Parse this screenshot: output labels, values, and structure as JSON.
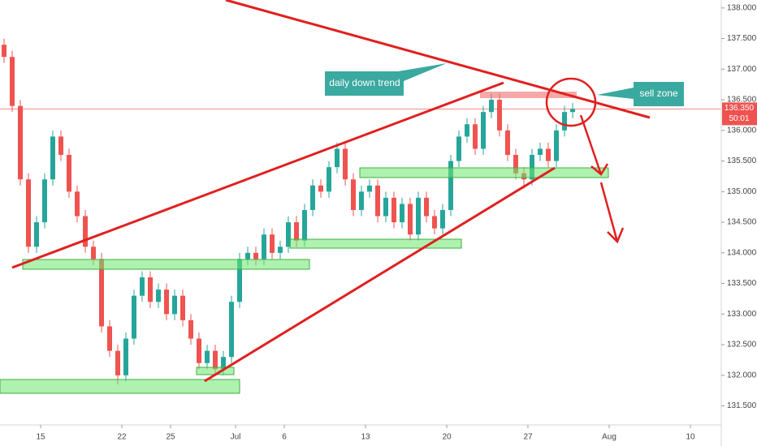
{
  "chart_data": {
    "type": "candlestick",
    "x": [
      -2.25,
      -1.75,
      -1.25,
      -0.75,
      -0.25,
      0.25,
      0.75,
      1.25,
      1.75,
      2.25,
      2.75,
      3.25,
      3.75,
      4.25,
      4.75,
      5.25,
      5.75,
      6.25,
      6.75,
      7.25,
      7.75,
      8.25,
      8.75,
      9.25,
      9.75,
      10.25,
      10.75,
      11.25,
      11.75,
      12.25,
      12.75,
      13.25,
      13.75,
      14.25,
      14.75,
      15.25,
      15.75,
      16.25,
      16.75,
      17.25,
      17.75,
      18.25,
      18.75,
      19.25,
      19.75,
      20.25,
      20.75,
      21.25,
      21.75,
      22.25,
      22.75,
      23.25,
      23.75,
      24.25,
      24.75,
      25.25,
      25.75,
      26.25,
      26.75,
      27.25,
      27.75,
      28.25,
      28.75,
      29.25,
      29.75,
      30.25,
      30.75,
      31.25,
      31.75,
      32.25,
      32.75
    ],
    "ohlc": [
      [
        137.4,
        137.5,
        137.1,
        137.2
      ],
      [
        137.2,
        137.3,
        136.3,
        136.4
      ],
      [
        136.4,
        136.5,
        135.1,
        135.2
      ],
      [
        135.2,
        135.3,
        134.0,
        134.1
      ],
      [
        134.1,
        134.6,
        134.0,
        134.5
      ],
      [
        134.5,
        135.3,
        134.4,
        135.2
      ],
      [
        135.2,
        136.0,
        135.1,
        135.9
      ],
      [
        135.9,
        136.0,
        135.5,
        135.6
      ],
      [
        135.6,
        135.7,
        134.9,
        135.0
      ],
      [
        135.0,
        135.1,
        134.5,
        134.6
      ],
      [
        134.6,
        134.7,
        134.0,
        134.1
      ],
      [
        134.1,
        134.2,
        133.8,
        133.9
      ],
      [
        133.9,
        134.0,
        132.7,
        132.8
      ],
      [
        132.8,
        132.9,
        132.3,
        132.4
      ],
      [
        132.4,
        132.5,
        131.85,
        132.0
      ],
      [
        132.0,
        132.7,
        131.9,
        132.6
      ],
      [
        132.6,
        133.4,
        132.5,
        133.3
      ],
      [
        133.3,
        133.7,
        133.2,
        133.6
      ],
      [
        133.6,
        133.7,
        133.1,
        133.2
      ],
      [
        133.2,
        133.5,
        133.1,
        133.4
      ],
      [
        133.4,
        133.5,
        132.9,
        133.0
      ],
      [
        133.0,
        133.4,
        132.9,
        133.3
      ],
      [
        133.3,
        133.4,
        132.8,
        132.9
      ],
      [
        132.9,
        133.0,
        132.5,
        132.6
      ],
      [
        132.6,
        132.7,
        132.1,
        132.2
      ],
      [
        132.2,
        132.5,
        132.1,
        132.4
      ],
      [
        132.4,
        132.5,
        132.0,
        132.1
      ],
      [
        132.1,
        132.4,
        132.0,
        132.3
      ],
      [
        132.3,
        133.3,
        132.2,
        133.2
      ],
      [
        133.2,
        134.0,
        133.1,
        133.9
      ],
      [
        133.9,
        134.1,
        133.8,
        134.0
      ],
      [
        134.0,
        134.1,
        133.8,
        133.9
      ],
      [
        133.9,
        134.4,
        133.8,
        134.3
      ],
      [
        134.3,
        134.4,
        133.9,
        134.0
      ],
      [
        134.0,
        134.2,
        133.9,
        134.1
      ],
      [
        134.1,
        134.6,
        134.0,
        134.5
      ],
      [
        134.5,
        134.6,
        134.1,
        134.2
      ],
      [
        134.2,
        134.8,
        134.1,
        134.7
      ],
      [
        134.7,
        135.2,
        134.6,
        135.1
      ],
      [
        135.1,
        135.2,
        134.9,
        135.0
      ],
      [
        135.0,
        135.5,
        134.9,
        135.4
      ],
      [
        135.4,
        135.8,
        135.3,
        135.7
      ],
      [
        135.7,
        135.8,
        135.1,
        135.2
      ],
      [
        135.2,
        135.3,
        134.6,
        134.7
      ],
      [
        134.7,
        135.1,
        134.6,
        135.0
      ],
      [
        135.0,
        135.2,
        134.9,
        135.1
      ],
      [
        135.1,
        135.2,
        134.5,
        134.6
      ],
      [
        134.6,
        135.0,
        134.5,
        134.9
      ],
      [
        134.9,
        135.0,
        134.4,
        134.5
      ],
      [
        134.5,
        134.9,
        134.4,
        134.8
      ],
      [
        134.8,
        134.9,
        134.2,
        134.3
      ],
      [
        134.3,
        135.0,
        134.2,
        134.9
      ],
      [
        134.9,
        135.0,
        134.5,
        134.6
      ],
      [
        134.6,
        134.7,
        134.3,
        134.4
      ],
      [
        134.4,
        134.8,
        134.3,
        134.7
      ],
      [
        134.7,
        135.6,
        134.6,
        135.5
      ],
      [
        135.5,
        136.0,
        135.4,
        135.9
      ],
      [
        135.9,
        136.2,
        135.8,
        136.1
      ],
      [
        136.1,
        136.2,
        135.6,
        135.7
      ],
      [
        135.7,
        136.4,
        135.6,
        136.3
      ],
      [
        136.3,
        136.6,
        136.2,
        136.5
      ],
      [
        136.5,
        136.6,
        135.9,
        136.0
      ],
      [
        136.0,
        136.1,
        135.5,
        135.6
      ],
      [
        135.6,
        135.7,
        135.2,
        135.3
      ],
      [
        135.3,
        135.4,
        135.05,
        135.2
      ],
      [
        135.2,
        135.7,
        135.1,
        135.6
      ],
      [
        135.6,
        135.8,
        135.5,
        135.7
      ],
      [
        135.7,
        135.8,
        135.4,
        135.5
      ],
      [
        135.5,
        136.1,
        135.4,
        136.0
      ],
      [
        136.0,
        136.4,
        135.9,
        136.3
      ],
      [
        136.3,
        136.45,
        136.2,
        136.35
      ]
    ],
    "up_color": "#26a69a",
    "down_color": "#ef5350",
    "xlim": [
      -2.5,
      41.9
    ],
    "xticks": [
      {
        "value": 0,
        "label": "15"
      },
      {
        "value": 5,
        "label": "22"
      },
      {
        "value": 8,
        "label": "25"
      },
      {
        "value": 12,
        "label": "Jul"
      },
      {
        "value": 15,
        "label": "6"
      },
      {
        "value": 20,
        "label": "13"
      },
      {
        "value": 25,
        "label": "20"
      },
      {
        "value": 30,
        "label": "27"
      },
      {
        "value": 35,
        "label": "Aug"
      },
      {
        "value": 40,
        "label": "10"
      }
    ],
    "ylim": [
      131.19,
      138.13
    ],
    "yticks": [
      {
        "value": 131.5,
        "label": "131.500"
      },
      {
        "value": 132,
        "label": "132.000"
      },
      {
        "value": 132.5,
        "label": "132.500"
      },
      {
        "value": 133,
        "label": "133.000"
      },
      {
        "value": 133.5,
        "label": "133.500"
      },
      {
        "value": 134,
        "label": "134.000"
      },
      {
        "value": 134.5,
        "label": "134.500"
      },
      {
        "value": 135,
        "label": "135.000"
      },
      {
        "value": 135.5,
        "label": "135.500"
      },
      {
        "value": 136,
        "label": "136.000"
      },
      {
        "value": 136.5,
        "label": "136.500"
      },
      {
        "value": 137,
        "label": "137.000"
      },
      {
        "value": 137.5,
        "label": "137.500"
      },
      {
        "value": 138,
        "label": "138.000"
      }
    ],
    "last_price": {
      "value": 136.35,
      "label": "136.350"
    },
    "countdown": "50:01",
    "annotations": [
      "daily down trend",
      "sell zone"
    ]
  }
}
